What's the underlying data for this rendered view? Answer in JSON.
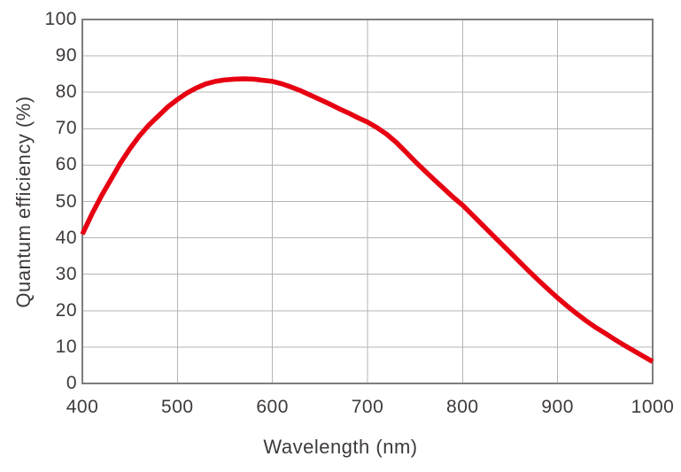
{
  "style": {
    "background": "#ffffff",
    "text_color": "#3e3a39",
    "grid_color": "#b5b5b6",
    "frame_color": "#7f7d7d",
    "curve_color": "#e60012"
  },
  "chart_data": {
    "type": "line",
    "title": "",
    "xlabel": "Wavelength (nm)",
    "ylabel": "Quantum efficiency (%)",
    "xlim": [
      400,
      1000
    ],
    "ylim": [
      0,
      100
    ],
    "xticks": [
      400,
      500,
      600,
      700,
      800,
      900,
      1000
    ],
    "yticks": [
      0,
      10,
      20,
      30,
      40,
      50,
      60,
      70,
      80,
      90,
      100
    ],
    "grid": true,
    "legend": "none",
    "series": [
      {
        "name": "quantum-efficiency",
        "color": "#e60012",
        "line_width": 5.5,
        "points": [
          [
            400,
            41
          ],
          [
            410,
            46.5
          ],
          [
            420,
            51.5
          ],
          [
            430,
            56
          ],
          [
            440,
            60.5
          ],
          [
            450,
            64.5
          ],
          [
            460,
            68
          ],
          [
            470,
            71
          ],
          [
            480,
            73.5
          ],
          [
            490,
            76
          ],
          [
            500,
            78
          ],
          [
            510,
            79.8
          ],
          [
            520,
            81.2
          ],
          [
            530,
            82.3
          ],
          [
            540,
            83
          ],
          [
            550,
            83.4
          ],
          [
            560,
            83.6
          ],
          [
            570,
            83.7
          ],
          [
            580,
            83.6
          ],
          [
            590,
            83.3
          ],
          [
            600,
            83
          ],
          [
            610,
            82.3
          ],
          [
            620,
            81.4
          ],
          [
            630,
            80.4
          ],
          [
            640,
            79.2
          ],
          [
            650,
            78
          ],
          [
            660,
            76.8
          ],
          [
            670,
            75.5
          ],
          [
            680,
            74.3
          ],
          [
            690,
            73
          ],
          [
            700,
            71.8
          ],
          [
            710,
            70.3
          ],
          [
            720,
            68.5
          ],
          [
            730,
            66.3
          ],
          [
            740,
            63.7
          ],
          [
            750,
            61
          ],
          [
            760,
            58.5
          ],
          [
            770,
            56
          ],
          [
            780,
            53.6
          ],
          [
            790,
            51.2
          ],
          [
            800,
            49
          ],
          [
            810,
            46.4
          ],
          [
            820,
            43.8
          ],
          [
            830,
            41.2
          ],
          [
            840,
            38.6
          ],
          [
            850,
            36
          ],
          [
            860,
            33.4
          ],
          [
            870,
            30.8
          ],
          [
            880,
            28.3
          ],
          [
            890,
            25.9
          ],
          [
            900,
            23.5
          ],
          [
            910,
            21.3
          ],
          [
            920,
            19.2
          ],
          [
            930,
            17.2
          ],
          [
            940,
            15.4
          ],
          [
            950,
            13.8
          ],
          [
            960,
            12.1
          ],
          [
            970,
            10.5
          ],
          [
            980,
            9
          ],
          [
            990,
            7.5
          ],
          [
            1000,
            6
          ]
        ]
      }
    ]
  }
}
